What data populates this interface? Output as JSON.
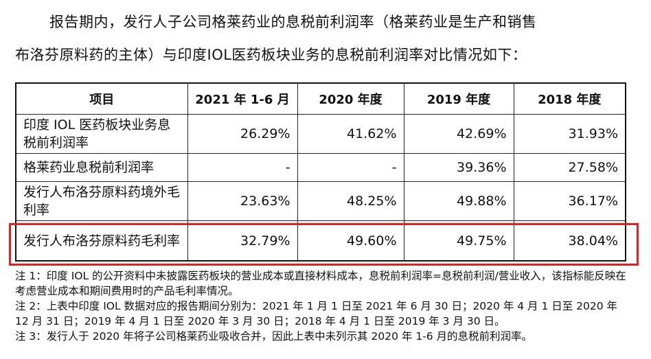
{
  "intro": {
    "line1": "报告期内，发行人子公司格莱药业的息税前利润率（格莱药业是生产和销售",
    "line2": "布洛芬原料药的主体）与印度IOL医药板块业务的息税前利润率对比情况如下："
  },
  "table": {
    "headers": [
      "项目",
      "2021 年 1-6 月",
      "2020 年度",
      "2019 年度",
      "2018 年度"
    ],
    "rows": [
      {
        "label": "印度 IOL 医药板块业务息税前利润率",
        "values": [
          "26.29%",
          "41.62%",
          "42.69%",
          "31.93%"
        ]
      },
      {
        "label": "格莱药业息税前利润率",
        "values": [
          "-",
          "-",
          "39.36%",
          "27.58%"
        ]
      },
      {
        "label": "发行人布洛芬原料药境外毛利率",
        "values": [
          "23.63%",
          "48.25%",
          "49.88%",
          "36.17%"
        ]
      },
      {
        "label": "发行人布洛芬原料药毛利率",
        "values": [
          "32.79%",
          "49.60%",
          "49.75%",
          "38.04%"
        ]
      }
    ]
  },
  "notes": [
    "注 1：印度 IOL 的公开资料中未披露医药板块的营业成本或直接材料成本，息税前利润率=息税前利润/营业收入，该指标能反映在考虑营业成本和期间费用时的产品毛利率情况。",
    "注 2：上表中印度 IOL 数据对应的报告期间分别为：2021 年 1 月 1 日至 2021 年 6 月 30 日；2020 年 4 月 1 日至 2020 年 12 月 31 日；2019 年 4 月 1 日至 2020 年 3 月 30 日；2018 年 4 月 1 日至 2019 年 3 月 30 日。",
    "注 3：发行人于 2020 年将子公司格莱药业吸收合并，因此上表中未列示其 2020 年 1-6 月的息税前利润率。"
  ],
  "highlight_color": "#e02020"
}
